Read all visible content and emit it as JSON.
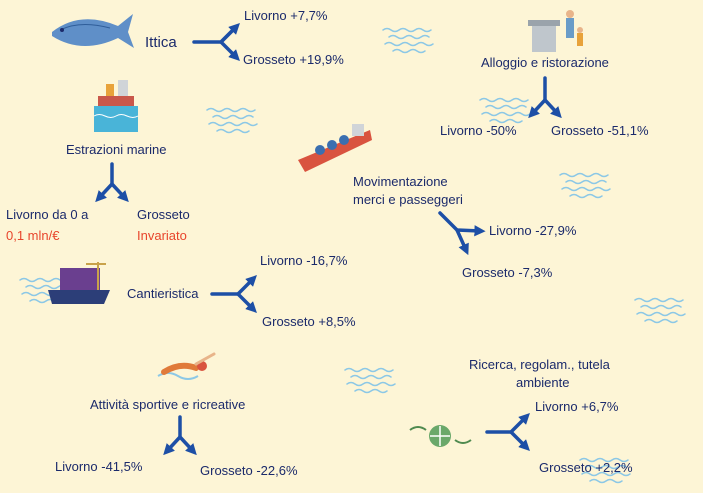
{
  "sectors": [
    {
      "name": [
        "Ittica"
      ],
      "livorno": [
        "Livorno +7,7%"
      ],
      "grosseto": [
        "Grosseto +19,9%"
      ]
    },
    {
      "name": [
        "Alloggio e ristorazione"
      ],
      "livorno": [
        "Livorno -50%"
      ],
      "grosseto": [
        "Grosseto -51,1%"
      ]
    },
    {
      "name": [
        "Estrazioni marine"
      ],
      "livorno": [
        "Livorno",
        "da 0 a",
        "0,1 mln/€"
      ],
      "grosseto": [
        "Grosseto",
        "Invariato"
      ]
    },
    {
      "name": [
        "Movimentazione",
        "merci e passeggeri"
      ],
      "livorno": [
        "Livorno -27,9%"
      ],
      "grosseto": [
        "Grosseto -7,3%"
      ]
    },
    {
      "name": [
        "Cantieristica"
      ],
      "livorno": [
        "Livorno -16,7%"
      ],
      "grosseto": [
        "Grosseto +8,5%"
      ]
    },
    {
      "name": [
        "Attività sportive e ricreative"
      ],
      "livorno": [
        "Livorno -41,5%"
      ],
      "grosseto": [
        "Grosseto -22,6%"
      ]
    },
    {
      "name": [
        "Ricerca, regolam., tutela",
        "ambiente"
      ],
      "livorno": [
        "Livorno +6,7%"
      ],
      "grosseto": [
        "Grosseto +2,2%"
      ]
    }
  ]
}
